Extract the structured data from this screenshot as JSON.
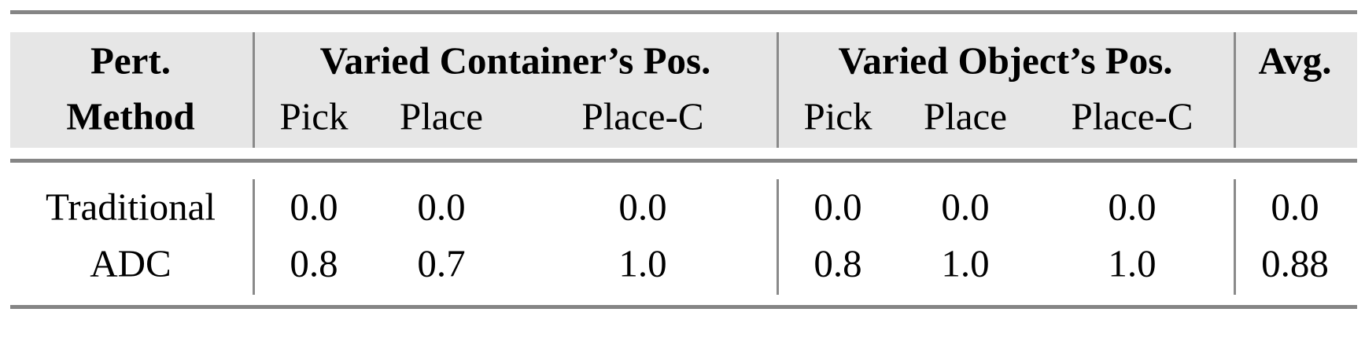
{
  "table": {
    "header_row1": {
      "method": "Pert.",
      "group1": "Varied Container’s Pos.",
      "group2": "Varied Object’s Pos.",
      "avg": "Avg."
    },
    "header_row2": {
      "method": "Method",
      "cols": [
        "Pick",
        "Place",
        "Place-C",
        "Pick",
        "Place",
        "Place-C"
      ]
    },
    "rows": [
      {
        "method": "Traditional",
        "values": [
          "0.0",
          "0.0",
          "0.0",
          "0.0",
          "0.0",
          "0.0"
        ],
        "avg": "0.0"
      },
      {
        "method": "ADC",
        "values": [
          "0.8",
          "0.7",
          "1.0",
          "0.8",
          "1.0",
          "1.0"
        ],
        "avg": "0.88"
      }
    ]
  },
  "colors": {
    "header_bg": "#e6e6e6",
    "rule": "#858585"
  }
}
